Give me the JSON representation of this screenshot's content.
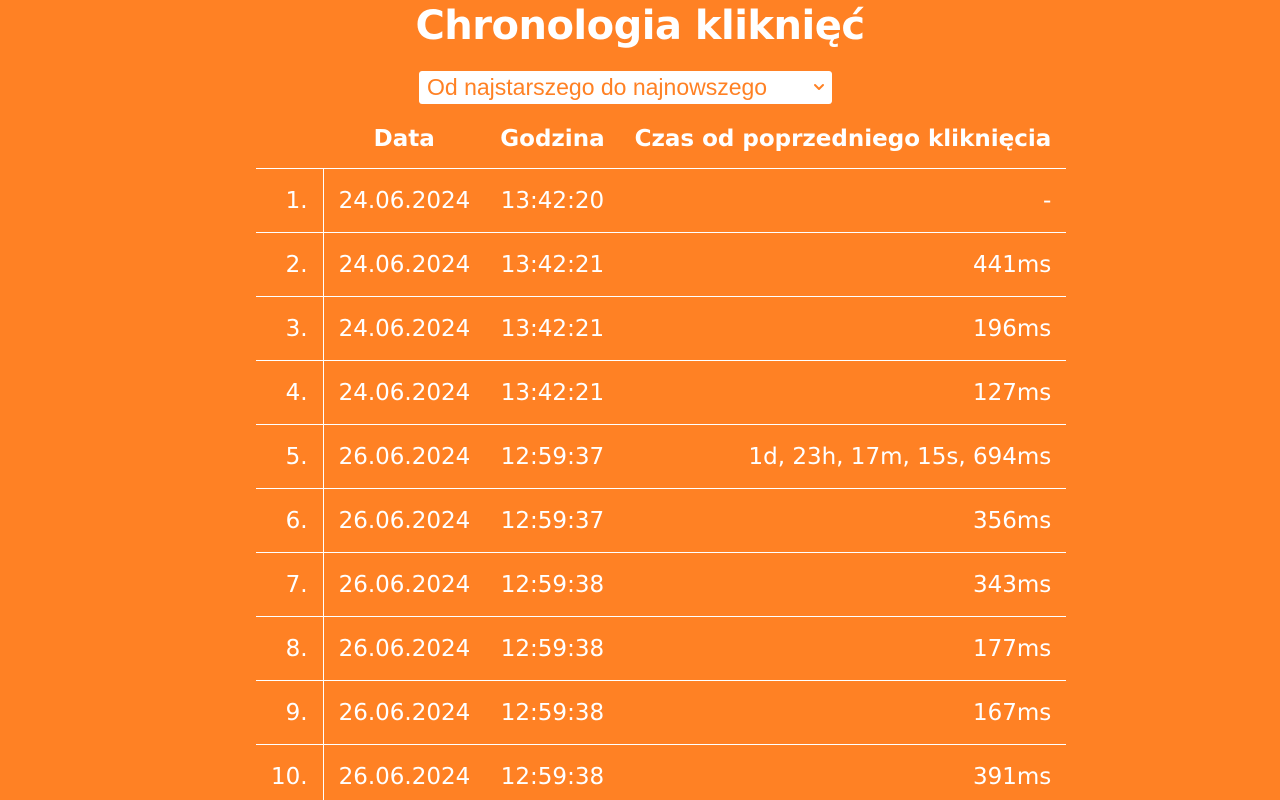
{
  "title": "Chronologia kliknięć",
  "sort": {
    "selected": "Od najstarszego do najnowszego"
  },
  "table": {
    "headers": {
      "index": "",
      "date": "Data",
      "time": "Godzina",
      "diff": "Czas od poprzedniego kliknięcia"
    },
    "rows": [
      {
        "index": "1.",
        "date": "24.06.2024",
        "time": "13:42:20",
        "diff": "-"
      },
      {
        "index": "2.",
        "date": "24.06.2024",
        "time": "13:42:21",
        "diff": "441ms"
      },
      {
        "index": "3.",
        "date": "24.06.2024",
        "time": "13:42:21",
        "diff": "196ms"
      },
      {
        "index": "4.",
        "date": "24.06.2024",
        "time": "13:42:21",
        "diff": "127ms"
      },
      {
        "index": "5.",
        "date": "26.06.2024",
        "time": "12:59:37",
        "diff": "1d, 23h, 17m, 15s, 694ms"
      },
      {
        "index": "6.",
        "date": "26.06.2024",
        "time": "12:59:37",
        "diff": "356ms"
      },
      {
        "index": "7.",
        "date": "26.06.2024",
        "time": "12:59:38",
        "diff": "343ms"
      },
      {
        "index": "8.",
        "date": "26.06.2024",
        "time": "12:59:38",
        "diff": "177ms"
      },
      {
        "index": "9.",
        "date": "26.06.2024",
        "time": "12:59:38",
        "diff": "167ms"
      },
      {
        "index": "10.",
        "date": "26.06.2024",
        "time": "12:59:38",
        "diff": "391ms"
      }
    ]
  },
  "colors": {
    "background": "#ff8124",
    "text": "#ffffff"
  },
  "icons": {
    "select_chevron": "chevron-down-icon"
  }
}
